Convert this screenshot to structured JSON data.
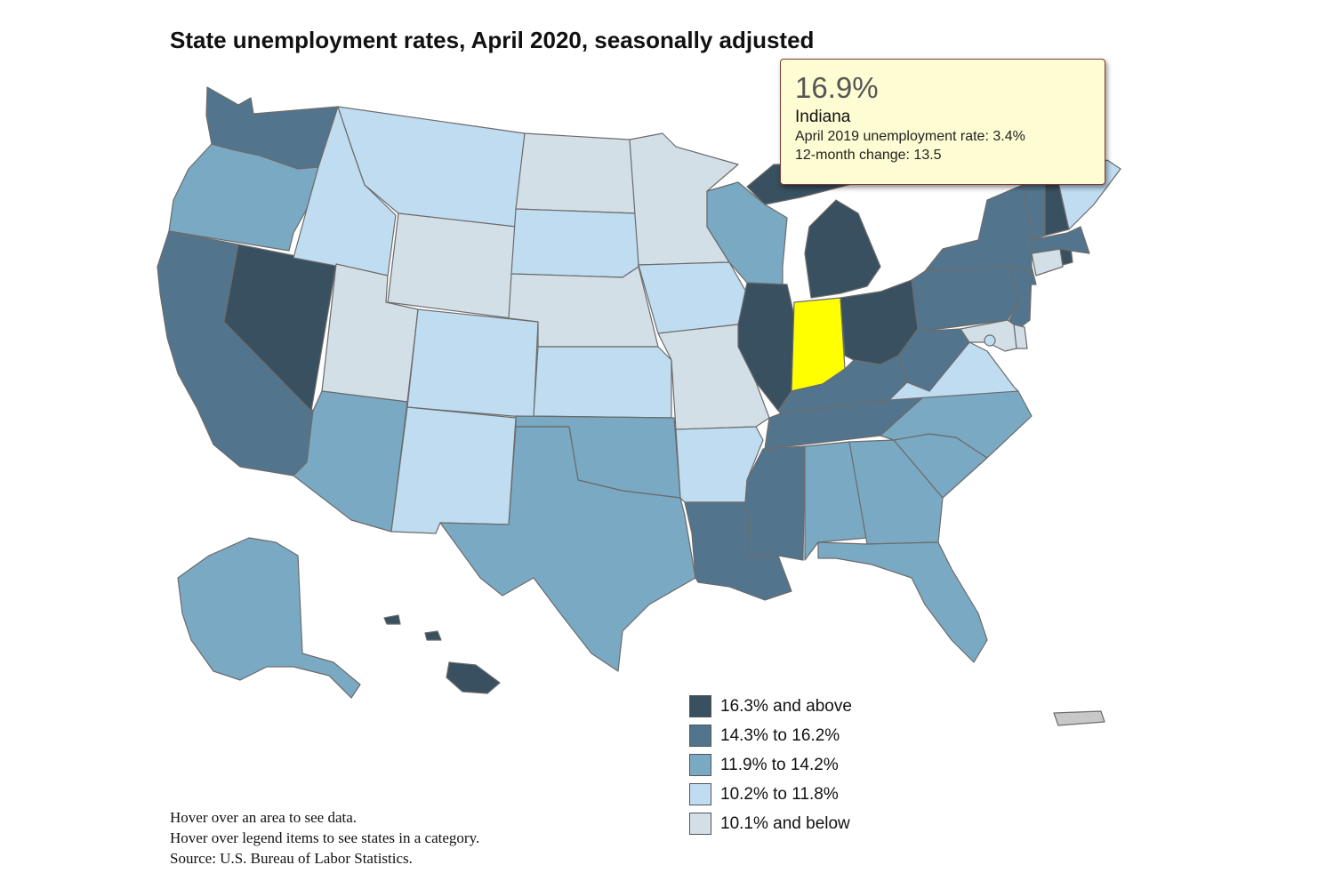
{
  "title": "State unemployment rates, April 2020, seasonally adjusted",
  "colors": {
    "c1": "#38505f",
    "c2": "#52758d",
    "c3": "#7aa9c3",
    "c4": "#c0dcf1",
    "c5": "#d3dfe7",
    "highlight": "#ffff00",
    "territory": "#c8c8c8"
  },
  "tooltip": {
    "value": "16.9%",
    "state": "Indiana",
    "line1": "April 2019 unemployment rate: 3.4%",
    "line2": "12-month change: 13.5"
  },
  "legend": [
    {
      "label": "16.3% and above",
      "color": "#38505f"
    },
    {
      "label": "14.3% to 16.2%",
      "color": "#52758d"
    },
    {
      "label": "11.9% to 14.2%",
      "color": "#7aa9c3"
    },
    {
      "label": "10.2% to 11.8%",
      "color": "#c0dcf1"
    },
    {
      "label": "10.1% and below",
      "color": "#d3dfe7"
    }
  ],
  "notes": [
    "Hover over an area to see data.",
    "Hover over legend items to see states in a category.",
    "Source: U.S. Bureau of Labor Statistics."
  ],
  "states": [
    {
      "name": "Washington",
      "category": "c2"
    },
    {
      "name": "Oregon",
      "category": "c3"
    },
    {
      "name": "California",
      "category": "c2"
    },
    {
      "name": "Nevada",
      "category": "c1"
    },
    {
      "name": "Idaho",
      "category": "c4"
    },
    {
      "name": "Montana",
      "category": "c4"
    },
    {
      "name": "Wyoming",
      "category": "c5"
    },
    {
      "name": "Utah",
      "category": "c5"
    },
    {
      "name": "Arizona",
      "category": "c3"
    },
    {
      "name": "Colorado",
      "category": "c4"
    },
    {
      "name": "New Mexico",
      "category": "c4"
    },
    {
      "name": "North Dakota",
      "category": "c5"
    },
    {
      "name": "South Dakota",
      "category": "c4"
    },
    {
      "name": "Nebraska",
      "category": "c5"
    },
    {
      "name": "Kansas",
      "category": "c4"
    },
    {
      "name": "Oklahoma",
      "category": "c3"
    },
    {
      "name": "Texas",
      "category": "c3"
    },
    {
      "name": "Minnesota",
      "category": "c5"
    },
    {
      "name": "Iowa",
      "category": "c4"
    },
    {
      "name": "Missouri",
      "category": "c5"
    },
    {
      "name": "Arkansas",
      "category": "c4"
    },
    {
      "name": "Louisiana",
      "category": "c2"
    },
    {
      "name": "Wisconsin",
      "category": "c3"
    },
    {
      "name": "Illinois",
      "category": "c1"
    },
    {
      "name": "Indiana",
      "category": "highlight"
    },
    {
      "name": "Michigan",
      "category": "c1"
    },
    {
      "name": "Ohio",
      "category": "c1"
    },
    {
      "name": "Kentucky",
      "category": "c2"
    },
    {
      "name": "Tennessee",
      "category": "c2"
    },
    {
      "name": "Mississippi",
      "category": "c2"
    },
    {
      "name": "Alabama",
      "category": "c3"
    },
    {
      "name": "Georgia",
      "category": "c3"
    },
    {
      "name": "Florida",
      "category": "c3"
    },
    {
      "name": "South Carolina",
      "category": "c3"
    },
    {
      "name": "North Carolina",
      "category": "c3"
    },
    {
      "name": "Virginia",
      "category": "c4"
    },
    {
      "name": "West Virginia",
      "category": "c2"
    },
    {
      "name": "Pennsylvania",
      "category": "c2"
    },
    {
      "name": "New York",
      "category": "c2"
    },
    {
      "name": "New Jersey",
      "category": "c2"
    },
    {
      "name": "Delaware",
      "category": "c5"
    },
    {
      "name": "Maryland",
      "category": "c5"
    },
    {
      "name": "District of Columbia",
      "category": "c4"
    },
    {
      "name": "Connecticut",
      "category": "c5"
    },
    {
      "name": "Rhode Island",
      "category": "c1"
    },
    {
      "name": "Massachusetts",
      "category": "c2"
    },
    {
      "name": "Vermont",
      "category": "c2"
    },
    {
      "name": "New Hampshire",
      "category": "c1"
    },
    {
      "name": "Maine",
      "category": "c4"
    },
    {
      "name": "Alaska",
      "category": "c3"
    },
    {
      "name": "Hawaii",
      "category": "c1"
    },
    {
      "name": "Puerto Rico",
      "category": "territory"
    }
  ]
}
